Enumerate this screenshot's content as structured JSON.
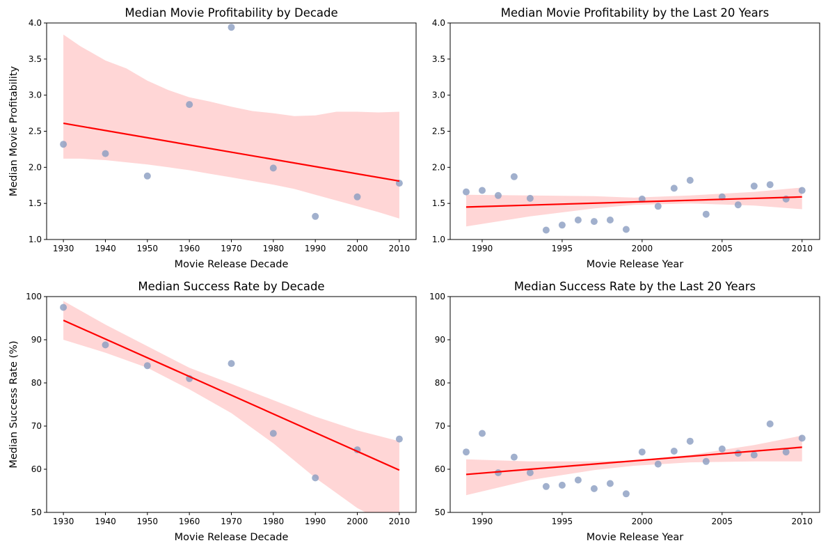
{
  "chart_data": [
    {
      "type": "scatter",
      "title": "Median Movie Profitability by Decade",
      "xlabel": "Movie Release Decade",
      "ylabel": "Median Movie Profitability",
      "xlim": [
        1926,
        2014
      ],
      "ylim": [
        1.0,
        4.0
      ],
      "xticks": [
        1930,
        1940,
        1950,
        1960,
        1970,
        1980,
        1990,
        2000,
        2010
      ],
      "xtick_labels": [
        "1930",
        "1940",
        "1950",
        "1960",
        "1970",
        "1980",
        "1990",
        "2000",
        "2010"
      ],
      "yticks": [
        1.0,
        1.5,
        2.0,
        2.5,
        3.0,
        3.5,
        4.0
      ],
      "ytick_labels": [
        "1.0",
        "1.5",
        "2.0",
        "2.5",
        "3.0",
        "3.5",
        "4.0"
      ],
      "grid": false,
      "points": {
        "x": [
          1930,
          1940,
          1950,
          1960,
          1970,
          1980,
          1990,
          2000,
          2010
        ],
        "y": [
          2.32,
          2.19,
          1.88,
          2.87,
          3.94,
          1.99,
          1.32,
          1.59,
          1.78
        ]
      },
      "regression": {
        "x": [
          1930,
          2010
        ],
        "y": [
          2.61,
          1.81
        ]
      },
      "confidence_band": {
        "x": [
          1930,
          1934,
          1940,
          1945,
          1950,
          1955,
          1960,
          1965,
          1970,
          1975,
          1980,
          1985,
          1990,
          1995,
          2000,
          2005,
          2010
        ],
        "upper": [
          3.84,
          3.68,
          3.48,
          3.37,
          3.2,
          3.07,
          2.97,
          2.91,
          2.84,
          2.78,
          2.75,
          2.71,
          2.72,
          2.77,
          2.77,
          2.76,
          2.77
        ],
        "lower": [
          2.12,
          2.12,
          2.1,
          2.07,
          2.04,
          2.0,
          1.96,
          1.91,
          1.86,
          1.81,
          1.76,
          1.7,
          1.62,
          1.54,
          1.46,
          1.38,
          1.29
        ]
      }
    },
    {
      "type": "scatter",
      "title": "Median Movie Profitability by the Last 20 Years",
      "xlabel": "Movie Release Year",
      "ylabel": "",
      "xlim": [
        1988.0,
        2011.1
      ],
      "ylim": [
        1.0,
        4.0
      ],
      "xticks": [
        1990,
        1995,
        2000,
        2005,
        2010
      ],
      "xtick_labels": [
        "1990",
        "1995",
        "2000",
        "2005",
        "2010"
      ],
      "yticks": [
        1.0,
        1.5,
        2.0,
        2.5,
        3.0,
        3.5,
        4.0
      ],
      "ytick_labels": [
        "1.0",
        "1.5",
        "2.0",
        "2.5",
        "3.0",
        "3.5",
        "4.0"
      ],
      "grid": false,
      "points": {
        "x": [
          1989,
          1990,
          1991,
          1992,
          1993,
          1994,
          1995,
          1996,
          1997,
          1998,
          1999,
          2000,
          2001,
          2002,
          2003,
          2004,
          2005,
          2006,
          2007,
          2008,
          2009,
          2010
        ],
        "y": [
          1.66,
          1.68,
          1.61,
          1.87,
          1.57,
          1.13,
          1.2,
          1.27,
          1.25,
          1.27,
          1.14,
          1.56,
          1.46,
          1.71,
          1.82,
          1.35,
          1.59,
          1.48,
          1.74,
          1.76,
          1.56,
          1.68
        ]
      },
      "regression": {
        "x": [
          1989,
          2010
        ],
        "y": [
          1.45,
          1.59
        ]
      },
      "confidence_band": {
        "x": [
          1989,
          1993,
          1997,
          1999.5,
          2003,
          2007,
          2010
        ],
        "upper": [
          1.62,
          1.61,
          1.6,
          1.58,
          1.61,
          1.66,
          1.72
        ],
        "lower": [
          1.18,
          1.32,
          1.43,
          1.48,
          1.5,
          1.47,
          1.42
        ]
      }
    },
    {
      "type": "scatter",
      "title": "Median Success Rate by Decade",
      "xlabel": "Movie Release Decade",
      "ylabel": "Median Success Rate (%)",
      "xlim": [
        1926,
        2014
      ],
      "ylim": [
        50,
        100
      ],
      "xticks": [
        1930,
        1940,
        1950,
        1960,
        1970,
        1980,
        1990,
        2000,
        2010
      ],
      "xtick_labels": [
        "1930",
        "1940",
        "1950",
        "1960",
        "1970",
        "1980",
        "1990",
        "2000",
        "2010"
      ],
      "yticks": [
        50,
        60,
        70,
        80,
        90,
        100
      ],
      "ytick_labels": [
        "50",
        "60",
        "70",
        "80",
        "90",
        "100"
      ],
      "grid": false,
      "points": {
        "x": [
          1930,
          1940,
          1950,
          1960,
          1970,
          1980,
          1990,
          2000,
          2010
        ],
        "y": [
          97.5,
          88.8,
          84.0,
          81.0,
          84.5,
          68.3,
          58.0,
          64.5,
          67.0
        ]
      },
      "regression": {
        "x": [
          1930,
          2010
        ],
        "y": [
          94.5,
          59.8
        ]
      },
      "confidence_band": {
        "x": [
          1930,
          1940,
          1950,
          1960,
          1970,
          1980,
          1990,
          2000,
          2010
        ],
        "upper": [
          99.0,
          93.5,
          88.5,
          83.5,
          79.8,
          76.0,
          72.2,
          69.0,
          66.5
        ],
        "lower": [
          90.0,
          87.0,
          83.5,
          78.5,
          73.0,
          66.0,
          58.0,
          51.0,
          46.0
        ]
      }
    },
    {
      "type": "scatter",
      "title": "Median Success Rate by the Last 20 Years",
      "xlabel": "Movie Release Year",
      "ylabel": "",
      "xlim": [
        1988.0,
        2011.1
      ],
      "ylim": [
        50,
        100
      ],
      "xticks": [
        1990,
        1995,
        2000,
        2005,
        2010
      ],
      "xtick_labels": [
        "1990",
        "1995",
        "2000",
        "2005",
        "2010"
      ],
      "yticks": [
        50,
        60,
        70,
        80,
        90,
        100
      ],
      "ytick_labels": [
        "50",
        "60",
        "70",
        "80",
        "90",
        "100"
      ],
      "grid": false,
      "points": {
        "x": [
          1989,
          1990,
          1991,
          1992,
          1993,
          1994,
          1995,
          1996,
          1997,
          1998,
          1999,
          2000,
          2001,
          2002,
          2003,
          2004,
          2005,
          2006,
          2007,
          2008,
          2009,
          2010
        ],
        "y": [
          64.0,
          68.3,
          59.2,
          62.8,
          59.2,
          56.0,
          56.3,
          57.5,
          55.5,
          56.7,
          54.3,
          64.0,
          61.2,
          64.2,
          66.5,
          61.8,
          64.7,
          63.7,
          63.3,
          70.5,
          64.0,
          67.2
        ]
      },
      "regression": {
        "x": [
          1989,
          2010
        ],
        "y": [
          58.8,
          65.1
        ]
      },
      "confidence_band": {
        "x": [
          1989,
          1993,
          1997,
          1999.5,
          2003,
          2007,
          2010
        ],
        "upper": [
          62.3,
          61.8,
          61.8,
          62.0,
          63.3,
          65.6,
          67.8
        ],
        "lower": [
          54.0,
          57.5,
          59.8,
          60.8,
          61.6,
          61.8,
          61.8
        ]
      }
    }
  ],
  "style": {
    "point_color": "#8a9cc0",
    "line_color": "#ff0000",
    "band_color": "#ffd6d6"
  }
}
